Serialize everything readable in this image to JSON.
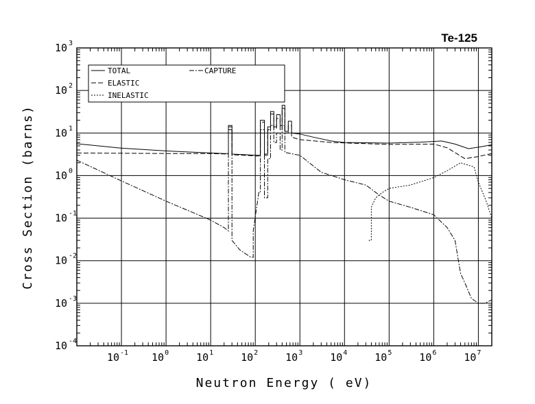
{
  "chart_data": {
    "type": "line",
    "title": "Te-125",
    "xlabel": "Neutron Energy ( eV)",
    "ylabel": "Cross Section (barns)",
    "xscale": "log",
    "yscale": "log",
    "xlim": [
      0.01,
      20000000
    ],
    "ylim": [
      0.0001,
      1000
    ],
    "grid": true,
    "legend_position": "top-left",
    "x_ticks": [
      {
        "base": "10",
        "exp": "-1",
        "value": 0.1
      },
      {
        "base": "10",
        "exp": "0",
        "value": 1
      },
      {
        "base": "10",
        "exp": "1",
        "value": 10
      },
      {
        "base": "10",
        "exp": "2",
        "value": 100
      },
      {
        "base": "10",
        "exp": "3",
        "value": 1000
      },
      {
        "base": "10",
        "exp": "4",
        "value": 10000
      },
      {
        "base": "10",
        "exp": "5",
        "value": 100000
      },
      {
        "base": "10",
        "exp": "6",
        "value": 1000000
      },
      {
        "base": "10",
        "exp": "7",
        "value": 10000000
      }
    ],
    "y_ticks": [
      {
        "base": "10",
        "exp": "3",
        "value": 1000
      },
      {
        "base": "10",
        "exp": "2",
        "value": 100
      },
      {
        "base": "10",
        "exp": "1",
        "value": 10
      },
      {
        "base": "10",
        "exp": "0",
        "value": 1
      },
      {
        "base": "10",
        "exp": "-1",
        "value": 0.1
      },
      {
        "base": "10",
        "exp": "-2",
        "value": 0.01
      },
      {
        "base": "10",
        "exp": "-3",
        "value": 0.001
      },
      {
        "base": "10",
        "exp": "-4",
        "value": 0.0001
      }
    ],
    "series": [
      {
        "name": "TOTAL",
        "dash": "solid",
        "points": [
          [
            0.01,
            5.6
          ],
          [
            0.1,
            4.4
          ],
          [
            1,
            3.8
          ],
          [
            10,
            3.4
          ],
          [
            20,
            3.3
          ],
          [
            25,
            3.3
          ],
          [
            25,
            15
          ],
          [
            30,
            15
          ],
          [
            30,
            3.2
          ],
          [
            60,
            3.1
          ],
          [
            100,
            3.0
          ],
          [
            130,
            3.0
          ],
          [
            130,
            20
          ],
          [
            160,
            20
          ],
          [
            160,
            3.2
          ],
          [
            190,
            3.2
          ],
          [
            190,
            14
          ],
          [
            220,
            14
          ],
          [
            220,
            32
          ],
          [
            260,
            32
          ],
          [
            260,
            14
          ],
          [
            300,
            14
          ],
          [
            300,
            27
          ],
          [
            360,
            27
          ],
          [
            360,
            15
          ],
          [
            400,
            15
          ],
          [
            400,
            45
          ],
          [
            460,
            45
          ],
          [
            460,
            11
          ],
          [
            550,
            11
          ],
          [
            550,
            19
          ],
          [
            650,
            19
          ],
          [
            650,
            10
          ],
          [
            1000,
            9.5
          ],
          [
            2000,
            8.0
          ],
          [
            5000,
            6.5
          ],
          [
            10000,
            6.0
          ],
          [
            100000,
            5.8
          ],
          [
            500000,
            6.1
          ],
          [
            1500000,
            6.5
          ],
          [
            3000000,
            5.5
          ],
          [
            6000000,
            4.3
          ],
          [
            12000000,
            4.8
          ],
          [
            20000000,
            5.3
          ]
        ]
      },
      {
        "name": "ELASTIC",
        "dash": "long-dash",
        "points": [
          [
            0.01,
            3.4
          ],
          [
            1,
            3.3
          ],
          [
            10,
            3.3
          ],
          [
            25,
            3.2
          ],
          [
            25,
            14
          ],
          [
            30,
            14
          ],
          [
            30,
            3.1
          ],
          [
            100,
            2.9
          ],
          [
            130,
            2.9
          ],
          [
            130,
            18
          ],
          [
            160,
            18
          ],
          [
            160,
            3.0
          ],
          [
            190,
            3.0
          ],
          [
            190,
            12
          ],
          [
            220,
            12
          ],
          [
            220,
            28
          ],
          [
            260,
            28
          ],
          [
            260,
            13
          ],
          [
            300,
            13
          ],
          [
            300,
            22
          ],
          [
            360,
            22
          ],
          [
            360,
            12
          ],
          [
            400,
            12
          ],
          [
            400,
            38
          ],
          [
            460,
            38
          ],
          [
            460,
            10
          ],
          [
            550,
            10
          ],
          [
            550,
            15
          ],
          [
            650,
            15
          ],
          [
            650,
            8
          ],
          [
            1000,
            7.0
          ],
          [
            5000,
            6.0
          ],
          [
            100000,
            5.4
          ],
          [
            1000000,
            5.5
          ],
          [
            2000000,
            4.5
          ],
          [
            5000000,
            2.5
          ],
          [
            10000000,
            2.8
          ],
          [
            20000000,
            3.3
          ]
        ]
      },
      {
        "name": "CAPTURE",
        "dash": "dash-dot",
        "points": [
          [
            0.01,
            2.3
          ],
          [
            0.1,
            0.75
          ],
          [
            1,
            0.25
          ],
          [
            10,
            0.09
          ],
          [
            20,
            0.06
          ],
          [
            25,
            0.05
          ],
          [
            25,
            12
          ],
          [
            30,
            12
          ],
          [
            30,
            0.03
          ],
          [
            45,
            0.018
          ],
          [
            80,
            0.012
          ],
          [
            90,
            0.012
          ],
          [
            90,
            0.05
          ],
          [
            120,
            0.4
          ],
          [
            130,
            0.4
          ],
          [
            130,
            12
          ],
          [
            160,
            12
          ],
          [
            160,
            0.3
          ],
          [
            190,
            0.3
          ],
          [
            190,
            2.5
          ],
          [
            220,
            2.5
          ],
          [
            220,
            15
          ],
          [
            260,
            15
          ],
          [
            260,
            6
          ],
          [
            300,
            6
          ],
          [
            300,
            10
          ],
          [
            360,
            10
          ],
          [
            360,
            4
          ],
          [
            400,
            4
          ],
          [
            400,
            15
          ],
          [
            460,
            15
          ],
          [
            460,
            3.5
          ],
          [
            1000,
            3.0
          ],
          [
            3000,
            1.2
          ],
          [
            10000,
            0.8
          ],
          [
            30000,
            0.6
          ],
          [
            60000,
            0.35
          ],
          [
            100000,
            0.25
          ],
          [
            300000,
            0.18
          ],
          [
            1000000,
            0.12
          ],
          [
            2000000,
            0.06
          ],
          [
            3000000,
            0.03
          ],
          [
            4000000,
            0.005
          ],
          [
            5000000,
            0.003
          ],
          [
            7000000,
            0.0013
          ],
          [
            10000000,
            0.001
          ],
          [
            14000000,
            0.001
          ],
          [
            20000000,
            0.0012
          ]
        ]
      },
      {
        "name": "INELASTIC",
        "dash": "short-dash",
        "points": [
          [
            35000,
            0.03
          ],
          [
            40000,
            0.03
          ],
          [
            40000,
            0.18
          ],
          [
            50000,
            0.3
          ],
          [
            70000,
            0.4
          ],
          [
            100000,
            0.5
          ],
          [
            300000,
            0.6
          ],
          [
            1000000,
            0.9
          ],
          [
            2000000,
            1.3
          ],
          [
            4000000,
            2.0
          ],
          [
            8000000,
            1.6
          ],
          [
            10000000,
            0.7
          ],
          [
            15000000,
            0.25
          ],
          [
            20000000,
            0.1
          ]
        ]
      }
    ]
  }
}
